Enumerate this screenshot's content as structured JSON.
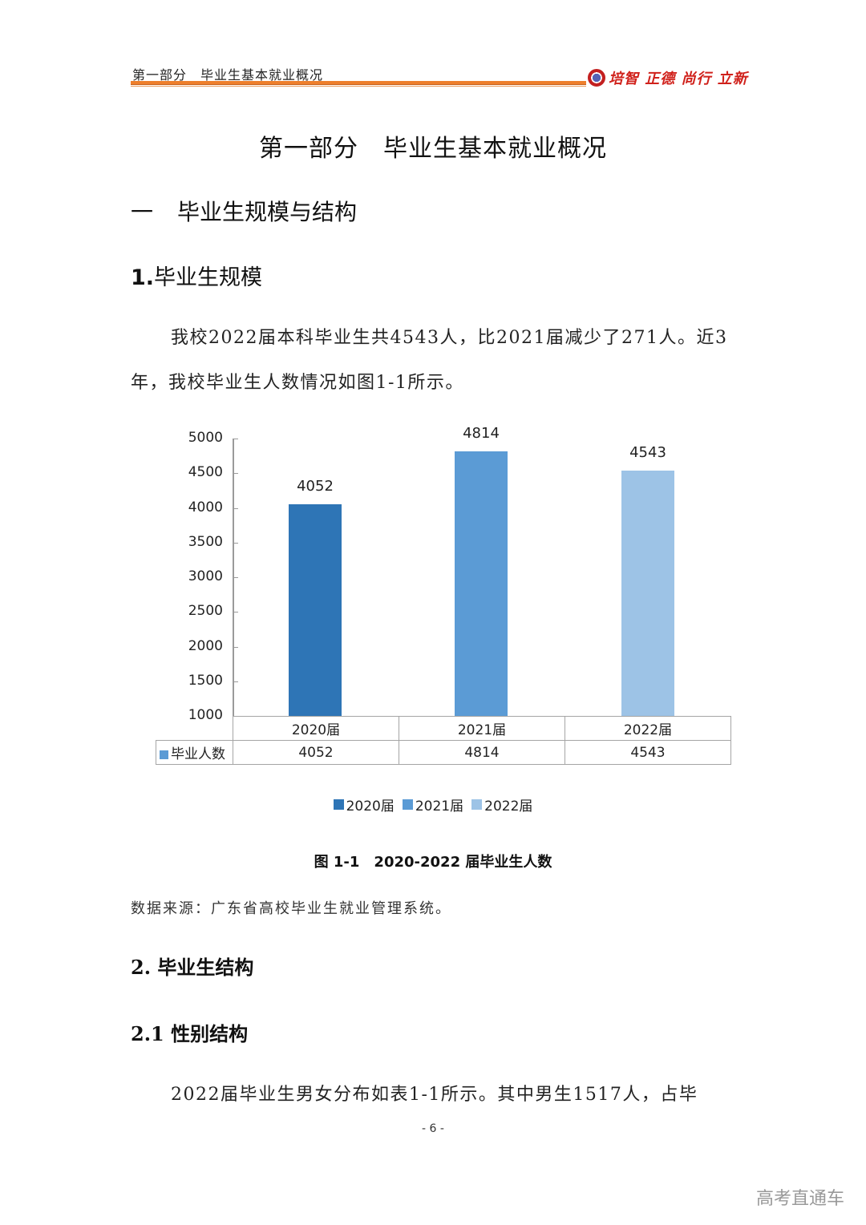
{
  "header": {
    "section_title": "第一部分　毕业生基本就业概况",
    "motto": "培智 正德 尚行 立新",
    "rule_color": "#ee7f2c",
    "motto_color": "#d0211b"
  },
  "page_title": "第一部分　毕业生基本就业概况",
  "section1": {
    "number": "一",
    "title": "毕业生规模与结构"
  },
  "subsection1": {
    "number": "1.",
    "title": "毕业生规模"
  },
  "paragraph1": "我校2022届本科毕业生共4543人，比2021届减少了271人。近3年，我校毕业生人数情况如图1-1所示。",
  "chart_data": {
    "type": "bar",
    "title": "图 1-1　2020-2022 届毕业生人数",
    "categories": [
      "2020届",
      "2021届",
      "2022届"
    ],
    "series": [
      {
        "name": "毕业人数",
        "values": [
          4052,
          4814,
          4543
        ]
      }
    ],
    "bar_colors": [
      "#2e75b6",
      "#5b9bd5",
      "#9dc3e6"
    ],
    "data_labels": [
      "4052",
      "4814",
      "4543"
    ],
    "xlabel": "",
    "ylabel": "",
    "ylim": [
      1000,
      5000
    ],
    "yticks": [
      5000,
      4500,
      4000,
      3500,
      3000,
      2500,
      2000,
      1500,
      1000
    ],
    "grid": false,
    "data_table": {
      "row_label": "毕业人数",
      "values": [
        "4052",
        "4814",
        "4543"
      ]
    },
    "legend": {
      "position": "bottom",
      "entries": [
        "2020届",
        "2021届",
        "2022届"
      ]
    }
  },
  "figure_caption": "图 1-1　2020-2022 届毕业生人数",
  "source_note": "数据来源：广东省高校毕业生就业管理系统。",
  "subsection2": {
    "title": "2. 毕业生结构"
  },
  "subsection2_1": {
    "title": "2.1 性别结构"
  },
  "paragraph2": "2022届毕业生男女分布如表1-1所示。其中男生1517人，占毕",
  "page_number": "- 6 -",
  "watermark": "高考直通车"
}
